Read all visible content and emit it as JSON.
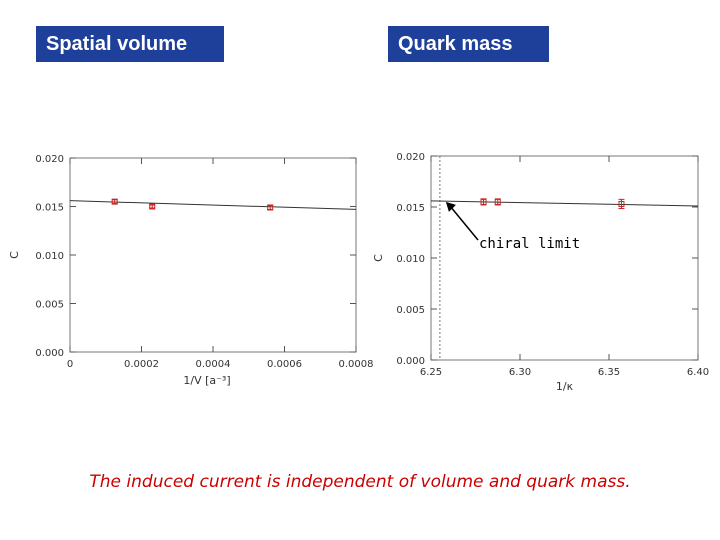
{
  "labels": {
    "left_title": "Spatial volume",
    "right_title": "Quark mass",
    "callout": "chiral limit",
    "caption": "The induced current is independent of volume and quark mass."
  },
  "colors": {
    "tag_bg": "#1e3f9a",
    "point": "#cc2222",
    "caption": "#cc0000"
  },
  "chart_data": [
    {
      "type": "scatter",
      "title": "Spatial volume",
      "xlabel": "1/V  [a⁻³]",
      "ylabel": "C",
      "xlim": [
        0,
        0.0008
      ],
      "ylim": [
        0,
        0.02
      ],
      "xticks": [
        0,
        0.0002,
        0.0004,
        0.0006,
        0.0008
      ],
      "xtick_labels": [
        "0",
        "0.0002",
        "0.0004",
        "0.0006",
        "0.0008"
      ],
      "yticks": [
        0,
        0.005,
        0.01,
        0.015,
        0.02
      ],
      "ytick_labels": [
        "0.000",
        "0.005",
        "0.010",
        "0.015",
        "0.020"
      ],
      "points": [
        {
          "x": 0.000125,
          "y": 0.0155,
          "err": 0.0002
        },
        {
          "x": 0.00023,
          "y": 0.015,
          "err": 0.00015
        },
        {
          "x": 0.00056,
          "y": 0.0149,
          "err": 0.0002
        }
      ],
      "fit_line": [
        [
          0,
          0.0156
        ],
        [
          0.0008,
          0.0147
        ]
      ],
      "grid": false,
      "legend": "none"
    },
    {
      "type": "scatter",
      "title": "Quark mass",
      "xlabel": "1/κ",
      "ylabel": "C",
      "xlim": [
        6.25,
        6.4
      ],
      "ylim": [
        0,
        0.02
      ],
      "xticks": [
        6.25,
        6.3,
        6.35,
        6.4
      ],
      "xtick_labels": [
        "6.25",
        "6.30",
        "6.35",
        "6.40"
      ],
      "yticks": [
        0,
        0.005,
        0.01,
        0.015,
        0.02
      ],
      "ytick_labels": [
        "0.000",
        "0.005",
        "0.010",
        "0.015",
        "0.020"
      ],
      "points": [
        {
          "x": 6.2795,
          "y": 0.0155,
          "err": 0.0003
        },
        {
          "x": 6.2875,
          "y": 0.0155,
          "err": 0.0003
        },
        {
          "x": 6.357,
          "y": 0.0153,
          "err": 0.00045
        }
      ],
      "fit_line": [
        [
          6.25,
          0.0156
        ],
        [
          6.4,
          0.0151
        ]
      ],
      "chiral_limit_x": 6.255,
      "grid": false,
      "legend": "none"
    }
  ]
}
